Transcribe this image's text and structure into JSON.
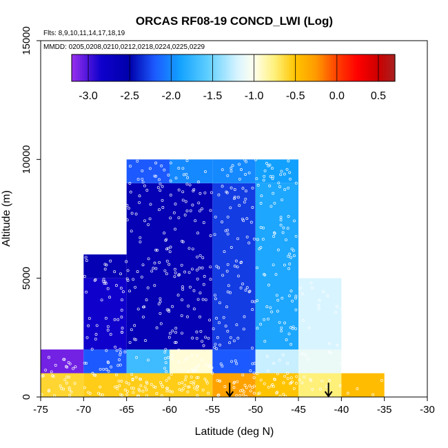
{
  "chart_data": {
    "type": "heatmap",
    "title": "ORCAS RF08-19 CONCD_LWI (Log)",
    "flights_note": "Flts: 8,9,10,11,14,17,18,19",
    "dates_note": "MMDD: 0205,0208,0210,0212,0218,0224,0225,0229",
    "xlabel": "Latitude (deg N)",
    "ylabel": "Altitude (m)",
    "xlim": [
      -75,
      -30
    ],
    "ylim": [
      0,
      15000
    ],
    "x_ticks": [
      "-75",
      "-70",
      "-65",
      "-60",
      "-55",
      "-50",
      "-45",
      "-40",
      "-35",
      "-30"
    ],
    "y_ticks": [
      "0",
      "5000",
      "10000",
      "15000"
    ],
    "colorbar": {
      "min": -3.2,
      "max": 0.7,
      "tick_values": [
        -3.0,
        -2.5,
        -2.0,
        -1.5,
        -1.0,
        -0.5,
        0.0,
        0.5
      ],
      "tick_labels": [
        "-3.0",
        "-2.5",
        "-2.0",
        "-1.5",
        "-1.0",
        "-0.5",
        "0.0",
        "0.5"
      ],
      "stops": [
        {
          "v": -3.2,
          "color": "#9a30ee"
        },
        {
          "v": -2.85,
          "color": "#1000cc"
        },
        {
          "v": -2.5,
          "color": "#0000aa"
        },
        {
          "v": -2.2,
          "color": "#1c5aff"
        },
        {
          "v": -1.9,
          "color": "#12a0ff"
        },
        {
          "v": -1.55,
          "color": "#60d0ff"
        },
        {
          "v": -1.2,
          "color": "#d8f4ff"
        },
        {
          "v": -1.0,
          "color": "#ffffee"
        },
        {
          "v": -0.75,
          "color": "#fff07a"
        },
        {
          "v": -0.5,
          "color": "#ffc400"
        },
        {
          "v": -0.25,
          "color": "#ff9a00"
        },
        {
          "v": 0.0,
          "color": "#ff4000"
        },
        {
          "v": 0.25,
          "color": "#ff0000"
        },
        {
          "v": 0.5,
          "color": "#cc0000"
        },
        {
          "v": 0.7,
          "color": "#a82020"
        }
      ]
    },
    "cells": [
      {
        "lat0": -75,
        "lat1": -70,
        "alt0": 1000,
        "alt1": 2000,
        "value": -3.1
      },
      {
        "lat0": -70,
        "lat1": -65,
        "alt0": 1000,
        "alt1": 2000,
        "value": -2.2
      },
      {
        "lat0": -65,
        "lat1": -60,
        "alt0": 1000,
        "alt1": 2000,
        "value": -1.7
      },
      {
        "lat0": -60,
        "lat1": -55,
        "alt0": 1000,
        "alt1": 2000,
        "value": -0.95
      },
      {
        "lat0": -55,
        "lat1": -50,
        "alt0": 1000,
        "alt1": 2000,
        "value": -2.2
      },
      {
        "lat0": -50,
        "lat1": -45,
        "alt0": 1000,
        "alt1": 2000,
        "value": -1.25
      },
      {
        "lat0": -45,
        "lat1": -40,
        "alt0": 1000,
        "alt1": 2000,
        "value": -1.1
      },
      {
        "lat0": -75,
        "lat1": -70,
        "alt0": 0,
        "alt1": 1000,
        "value": -0.6
      },
      {
        "lat0": -70,
        "lat1": -65,
        "alt0": 0,
        "alt1": 1000,
        "value": -0.55
      },
      {
        "lat0": -65,
        "lat1": -60,
        "alt0": 0,
        "alt1": 1000,
        "value": -0.55
      },
      {
        "lat0": -60,
        "lat1": -55,
        "alt0": 0,
        "alt1": 1000,
        "value": -0.55
      },
      {
        "lat0": -55,
        "lat1": -50,
        "alt0": 0,
        "alt1": 1000,
        "value": -0.3
      },
      {
        "lat0": -50,
        "lat1": -45,
        "alt0": 0,
        "alt1": 1000,
        "value": -0.5
      },
      {
        "lat0": -45,
        "lat1": -40,
        "alt0": 0,
        "alt1": 1000,
        "value": -0.75
      },
      {
        "lat0": -40,
        "lat1": -35,
        "alt0": 0,
        "alt1": 1000,
        "value": -0.45
      },
      {
        "lat0": -70,
        "lat1": -65,
        "alt0": 2000,
        "alt1": 5000,
        "value": -2.85
      },
      {
        "lat0": -70,
        "lat1": -65,
        "alt0": 5000,
        "alt1": 6000,
        "value": -2.6
      },
      {
        "lat0": -65,
        "lat1": -60,
        "alt0": 2000,
        "alt1": 9000,
        "value": -2.6
      },
      {
        "lat0": -60,
        "lat1": -55,
        "alt0": 2000,
        "alt1": 9000,
        "value": -2.6
      },
      {
        "lat0": -55,
        "lat1": -50,
        "alt0": 2000,
        "alt1": 9000,
        "value": -2.3
      },
      {
        "lat0": -50,
        "lat1": -45,
        "alt0": 2000,
        "alt1": 9000,
        "value": -1.85
      },
      {
        "lat0": -45,
        "lat1": -40,
        "alt0": 2000,
        "alt1": 5000,
        "value": -1.2
      },
      {
        "lat0": -65,
        "lat1": -60,
        "alt0": 9000,
        "alt1": 10000,
        "value": -2.2
      },
      {
        "lat0": -60,
        "lat1": -55,
        "alt0": 9000,
        "alt1": 10000,
        "value": -2.0
      },
      {
        "lat0": -55,
        "lat1": -50,
        "alt0": 9000,
        "alt1": 10000,
        "value": -2.0
      },
      {
        "lat0": -50,
        "lat1": -45,
        "alt0": 9000,
        "alt1": 10000,
        "value": -1.9
      }
    ],
    "arrows": [
      {
        "lat": -53,
        "alt_top": 600,
        "alt_bottom": 0
      },
      {
        "lat": -41.5,
        "alt_top": 600,
        "alt_bottom": 0
      }
    ],
    "sample_regions": [
      {
        "lat0": -75,
        "lat1": -65,
        "alt0": 0,
        "alt1": 2000,
        "count": 70
      },
      {
        "lat0": -70,
        "lat1": -65,
        "alt0": 2000,
        "alt1": 6000,
        "count": 45
      },
      {
        "lat0": -65,
        "lat1": -45,
        "alt0": 0,
        "alt1": 1000,
        "count": 120
      },
      {
        "lat0": -65,
        "lat1": -45,
        "alt0": 1000,
        "alt1": 10000,
        "count": 420
      },
      {
        "lat0": -45,
        "lat1": -35,
        "alt0": 0,
        "alt1": 5000,
        "count": 60
      }
    ]
  }
}
